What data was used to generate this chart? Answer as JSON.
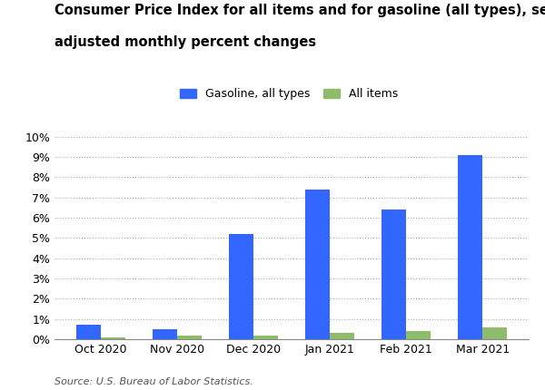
{
  "categories": [
    "Oct 2020",
    "Nov 2020",
    "Dec 2020",
    "Jan 2021",
    "Feb 2021",
    "Mar 2021"
  ],
  "gasoline": [
    0.7,
    0.5,
    5.2,
    7.4,
    6.4,
    9.1
  ],
  "all_items": [
    0.1,
    0.2,
    0.2,
    0.3,
    0.4,
    0.6
  ],
  "gasoline_color": "#3366FF",
  "all_items_color": "#8FBC6B",
  "title_line1": "Consumer Price Index for all items and for gasoline (all types), seasonally",
  "title_line2": "adjusted monthly percent changes",
  "legend_gasoline": "Gasoline, all types",
  "legend_all_items": "All items",
  "source_text": "Source: U.S. Bureau of Labor Statistics.",
  "ylim": [
    0,
    10
  ],
  "yticks": [
    0,
    1,
    2,
    3,
    4,
    5,
    6,
    7,
    8,
    9,
    10
  ],
  "ytick_labels": [
    "0%",
    "1%",
    "2%",
    "3%",
    "4%",
    "5%",
    "6%",
    "7%",
    "8%",
    "9%",
    "10%"
  ],
  "bar_width": 0.32,
  "background_color": "#FFFFFF",
  "title_fontsize": 10.5,
  "axis_fontsize": 9,
  "legend_fontsize": 9,
  "source_fontsize": 8
}
